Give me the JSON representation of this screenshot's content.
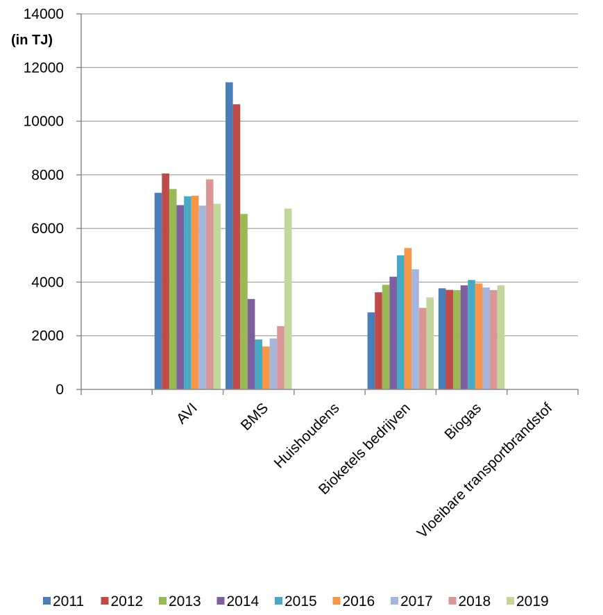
{
  "chart_data": {
    "type": "bar",
    "unit_label": "(in TJ)",
    "categories": [
      "",
      "AVI",
      "BMS",
      "Huishoudens",
      "Bioketels bedrijven",
      "Biogas",
      "Vloeibare transportbrandstof"
    ],
    "ylim": [
      0,
      14000
    ],
    "yticks": [
      0,
      2000,
      4000,
      6000,
      8000,
      10000,
      12000,
      14000
    ],
    "grid": true,
    "legend_position": "bottom",
    "series": [
      {
        "name": "2011",
        "color": "#4a7ebb",
        "values": [
          0,
          7330,
          11450,
          0,
          2870,
          3770,
          0
        ]
      },
      {
        "name": "2012",
        "color": "#be4b48",
        "values": [
          0,
          8050,
          10630,
          0,
          3620,
          3710,
          0
        ]
      },
      {
        "name": "2013",
        "color": "#98b954",
        "values": [
          0,
          7470,
          6540,
          0,
          3900,
          3700,
          0
        ]
      },
      {
        "name": "2014",
        "color": "#7d5fa0",
        "values": [
          0,
          6870,
          3370,
          0,
          4200,
          3880,
          0
        ]
      },
      {
        "name": "2015",
        "color": "#46aac5",
        "values": [
          0,
          7200,
          1860,
          0,
          5000,
          4080,
          0
        ]
      },
      {
        "name": "2016",
        "color": "#f79646",
        "values": [
          0,
          7220,
          1600,
          0,
          5270,
          3950,
          0
        ]
      },
      {
        "name": "2017",
        "color": "#a5b6dd",
        "values": [
          0,
          6850,
          1900,
          0,
          4480,
          3800,
          0
        ]
      },
      {
        "name": "2018",
        "color": "#d99694",
        "values": [
          0,
          7830,
          2360,
          0,
          3040,
          3700,
          0
        ]
      },
      {
        "name": "2019",
        "color": "#c3d69b",
        "values": [
          0,
          6920,
          6740,
          0,
          3430,
          3880,
          0
        ]
      }
    ]
  }
}
